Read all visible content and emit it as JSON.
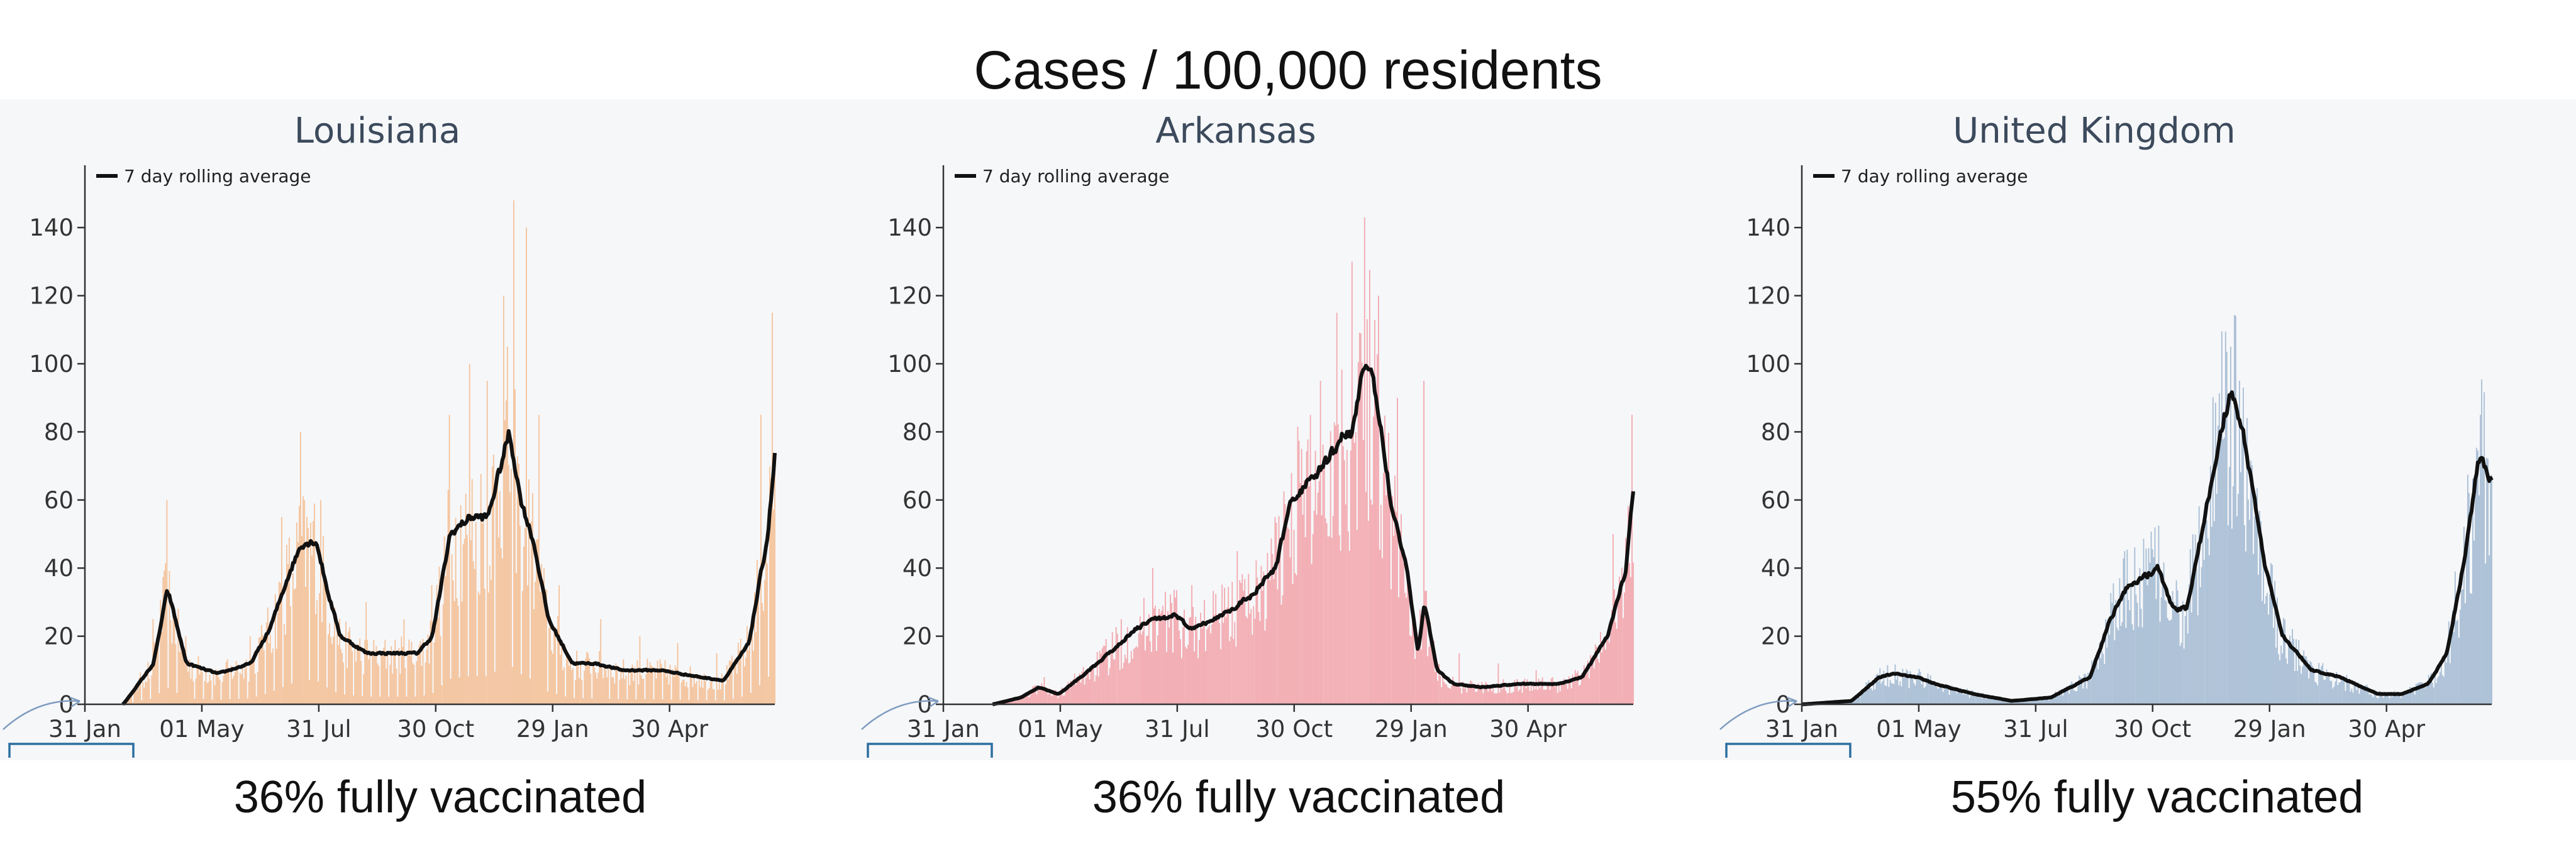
{
  "title": "Cases / 100,000 residents",
  "colors": {
    "bg": "#f6f7f9",
    "line": "#111111",
    "axis": "#333333",
    "bracket": "#2c6fa0"
  },
  "chart_data": [
    {
      "type": "bar",
      "title": "Louisiana",
      "subtitle": "36% fully vaccinated",
      "legend": "7 day rolling average",
      "bar_color": "#f4c29a",
      "ylim": [
        0,
        150
      ],
      "yticks": [
        0,
        20,
        40,
        60,
        80,
        100,
        120,
        140
      ],
      "xtick_labels": [
        "31 Jan",
        "01 May",
        "31 Jul",
        "30 Oct",
        "29 Jan",
        "30 Apr"
      ],
      "x_range": [
        "2020-01-31",
        "2021-07-31"
      ],
      "series": [
        {
          "kind": "rolling_average",
          "x": [
            "2020-03-01",
            "2020-03-25",
            "2020-04-05",
            "2020-04-20",
            "2020-05-15",
            "2020-06-10",
            "2020-06-25",
            "2020-07-10",
            "2020-07-20",
            "2020-08-01",
            "2020-08-10",
            "2020-08-20",
            "2020-09-10",
            "2020-10-01",
            "2020-10-20",
            "2020-11-01",
            "2020-11-15",
            "2020-12-01",
            "2020-12-15",
            "2021-01-01",
            "2021-01-10",
            "2021-01-20",
            "2021-02-01",
            "2021-02-20",
            "2021-03-10",
            "2021-04-01",
            "2021-05-01",
            "2021-06-01",
            "2021-06-20",
            "2021-07-10",
            "2021-07-25",
            "2021-07-31"
          ],
          "y": [
            0,
            12,
            34,
            12,
            9,
            12,
            22,
            38,
            47,
            48,
            33,
            20,
            15,
            15,
            15,
            20,
            50,
            55,
            55,
            80,
            60,
            48,
            25,
            12,
            12,
            10,
            10,
            8,
            7,
            18,
            50,
            75
          ]
        },
        {
          "kind": "daily",
          "x": [
            "2020-03-25",
            "2020-04-05",
            "2020-04-20",
            "2020-06-10",
            "2020-07-05",
            "2020-07-20",
            "2020-08-05",
            "2020-09-10",
            "2020-10-10",
            "2020-11-01",
            "2020-11-15",
            "2020-12-01",
            "2020-12-15",
            "2020-12-28",
            "2021-01-05",
            "2021-01-15",
            "2021-01-25",
            "2021-02-10",
            "2021-03-15",
            "2021-04-15",
            "2021-05-15",
            "2021-06-15",
            "2021-07-20",
            "2021-07-29"
          ],
          "y": [
            25,
            60,
            20,
            20,
            55,
            80,
            60,
            30,
            25,
            35,
            85,
            100,
            95,
            120,
            148,
            140,
            85,
            35,
            25,
            20,
            18,
            15,
            85,
            115
          ]
        }
      ]
    },
    {
      "type": "bar",
      "title": "Arkansas",
      "subtitle": "36% fully vaccinated",
      "legend": "7 day rolling average",
      "bar_color": "#f2a9af",
      "ylim": [
        0,
        150
      ],
      "yticks": [
        0,
        20,
        40,
        60,
        80,
        100,
        120,
        140
      ],
      "xtick_labels": [
        "31 Jan",
        "01 May",
        "31 Jul",
        "30 Oct",
        "29 Jan",
        "30 Apr"
      ],
      "x_range": [
        "2020-01-31",
        "2021-07-31"
      ],
      "series": [
        {
          "kind": "rolling_average",
          "x": [
            "2020-03-10",
            "2020-04-01",
            "2020-04-15",
            "2020-05-01",
            "2020-06-01",
            "2020-07-01",
            "2020-07-15",
            "2020-08-01",
            "2020-08-15",
            "2020-09-01",
            "2020-09-15",
            "2020-10-01",
            "2020-10-20",
            "2020-11-01",
            "2020-11-15",
            "2020-12-01",
            "2020-12-10",
            "2020-12-20",
            "2020-12-28",
            "2021-01-05",
            "2021-01-12",
            "2021-01-20",
            "2021-02-01",
            "2021-02-10",
            "2021-02-15",
            "2021-02-25",
            "2021-03-10",
            "2021-04-01",
            "2021-05-01",
            "2021-06-01",
            "2021-06-20",
            "2021-07-10",
            "2021-07-25",
            "2021-07-31"
          ],
          "y": [
            0,
            2,
            5,
            3,
            12,
            22,
            25,
            26,
            22,
            25,
            28,
            32,
            40,
            60,
            65,
            72,
            78,
            80,
            100,
            95,
            80,
            58,
            40,
            15,
            30,
            10,
            6,
            5,
            6,
            6,
            8,
            20,
            40,
            65
          ]
        },
        {
          "kind": "daily",
          "x": [
            "2020-04-20",
            "2020-06-20",
            "2020-07-15",
            "2020-08-15",
            "2020-09-20",
            "2020-10-20",
            "2020-11-10",
            "2020-11-25",
            "2020-12-08",
            "2020-12-20",
            "2020-12-30",
            "2021-01-10",
            "2021-01-25",
            "2021-02-15",
            "2021-03-15",
            "2021-04-15",
            "2021-05-15",
            "2021-06-15",
            "2021-07-15",
            "2021-07-30"
          ],
          "y": [
            8,
            25,
            40,
            35,
            45,
            55,
            75,
            95,
            115,
            130,
            143,
            120,
            90,
            95,
            15,
            12,
            10,
            10,
            50,
            85
          ]
        }
      ]
    },
    {
      "type": "bar",
      "title": "United Kingdom",
      "subtitle": "55% fully vaccinated",
      "legend": "7 day rolling average",
      "bar_color": "#a7bdd4",
      "ylim": [
        0,
        150
      ],
      "yticks": [
        0,
        20,
        40,
        60,
        80,
        100,
        120,
        140
      ],
      "xtick_labels": [
        "31 Jan",
        "01 May",
        "31 Jul",
        "30 Oct",
        "29 Jan",
        "30 Apr"
      ],
      "x_range": [
        "2020-01-31",
        "2021-07-31"
      ],
      "series": [
        {
          "kind": "rolling_average",
          "x": [
            "2020-01-31",
            "2020-03-10",
            "2020-04-01",
            "2020-04-12",
            "2020-05-01",
            "2020-05-15",
            "2020-06-15",
            "2020-07-15",
            "2020-08-15",
            "2020-09-15",
            "2020-10-01",
            "2020-10-15",
            "2020-10-30",
            "2020-11-08",
            "2020-11-20",
            "2020-12-01",
            "2020-12-15",
            "2020-12-28",
            "2021-01-05",
            "2021-01-15",
            "2021-02-01",
            "2021-02-15",
            "2021-03-10",
            "2021-04-01",
            "2021-05-01",
            "2021-05-20",
            "2021-06-10",
            "2021-06-25",
            "2021-07-10",
            "2021-07-20",
            "2021-07-31"
          ],
          "y": [
            0,
            1,
            8,
            9,
            8,
            6,
            3,
            1,
            2,
            8,
            25,
            35,
            38,
            40,
            28,
            28,
            55,
            80,
            93,
            78,
            40,
            20,
            10,
            8,
            3,
            3,
            6,
            15,
            45,
            73,
            65
          ]
        },
        {
          "kind": "daily",
          "x": [
            "2020-10-18",
            "2020-11-08",
            "2020-12-20",
            "2021-01-05",
            "2021-01-12",
            "2021-07-22"
          ],
          "y": [
            35,
            40,
            70,
            105,
            95,
            85
          ]
        }
      ]
    }
  ]
}
